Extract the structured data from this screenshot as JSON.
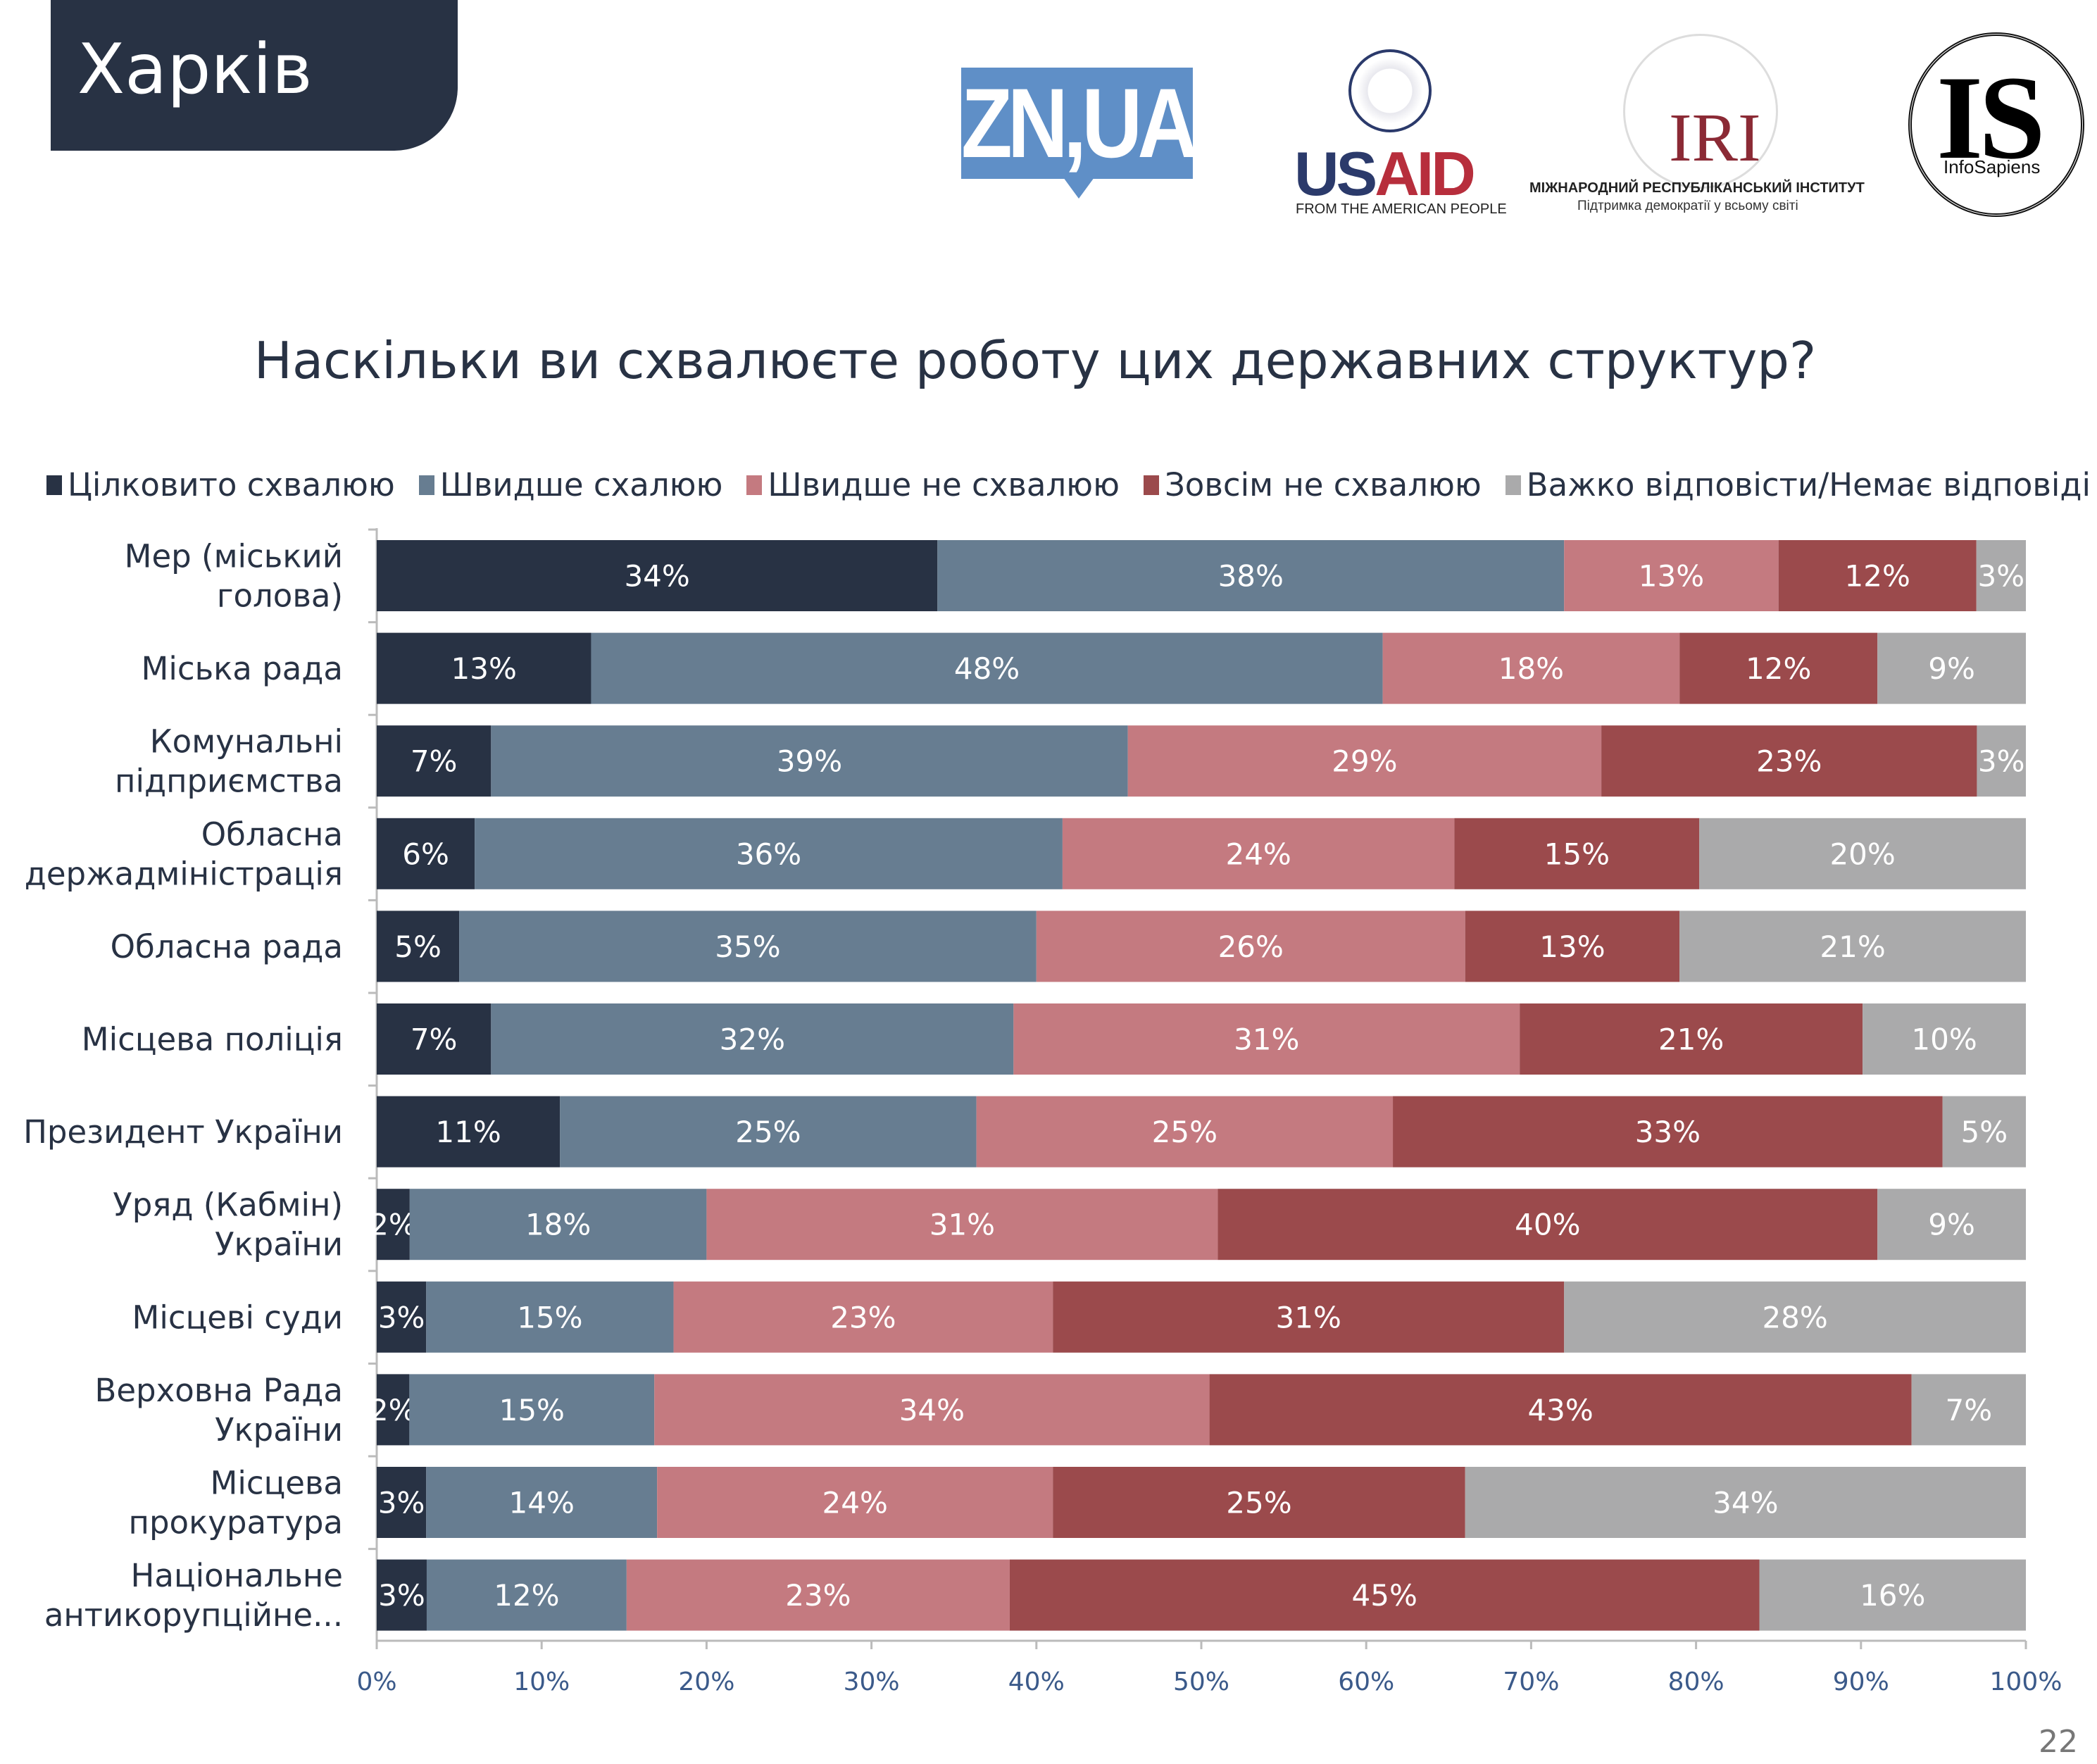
{
  "header": {
    "city": "Харків",
    "page_number": "22"
  },
  "logos": {
    "zn": "ZN,UA",
    "usaid": {
      "us": "US",
      "aid": "AID",
      "sub": "FROM THE AMERICAN PEOPLE"
    },
    "iri": {
      "word": "IRI",
      "sub1": "МІЖНАРОДНИЙ РЕСПУБЛІКАНСЬКИЙ ІНСТИТУТ",
      "sub2": "Підтримка демократії у всьому світі"
    },
    "infosapiens": {
      "word": "IS",
      "sub": "InfoSapiens"
    }
  },
  "chart_data": {
    "type": "bar",
    "orientation": "horizontal-stacked-100",
    "title": "Наскільки ви схвалюєте роботу цих державних структур?",
    "xlim": [
      0,
      100
    ],
    "x_ticks": [
      "0%",
      "10%",
      "20%",
      "30%",
      "40%",
      "50%",
      "60%",
      "70%",
      "80%",
      "90%",
      "100%"
    ],
    "legend_position": "top",
    "series": [
      {
        "name": "Цілковито схвалюю",
        "color": "#283244",
        "values": [
          34,
          13,
          7,
          6,
          5,
          7,
          11,
          2,
          3,
          2,
          3,
          3
        ]
      },
      {
        "name": "Швидше схалюю",
        "color": "#677d91",
        "values": [
          38,
          48,
          39,
          36,
          35,
          32,
          25,
          18,
          15,
          15,
          14,
          12
        ]
      },
      {
        "name": "Швидше не схвалюю",
        "color": "#c47a80",
        "values": [
          13,
          18,
          29,
          24,
          26,
          31,
          25,
          31,
          23,
          34,
          24,
          23
        ]
      },
      {
        "name": "Зовсім не схвалюю",
        "color": "#9b4a4c",
        "values": [
          12,
          12,
          23,
          15,
          13,
          21,
          33,
          40,
          31,
          43,
          25,
          45
        ]
      },
      {
        "name": "Важко відповісти/Немає відповіді",
        "color": "#aaaaab",
        "values": [
          3,
          9,
          3,
          20,
          21,
          10,
          5,
          9,
          28,
          7,
          34,
          16
        ]
      }
    ],
    "categories": [
      [
        "Мер (міський",
        "голова)"
      ],
      [
        "Міська рада"
      ],
      [
        "Комунальні",
        "підприємства"
      ],
      [
        "Обласна",
        "держадміністрація"
      ],
      [
        "Обласна рада"
      ],
      [
        "Місцева поліція"
      ],
      [
        "Президент України"
      ],
      [
        "Уряд (Кабмін)",
        "України"
      ],
      [
        "Місцеві суди"
      ],
      [
        "Верховна Рада",
        "України"
      ],
      [
        "Місцева",
        "прокуратура"
      ],
      [
        "Національне",
        "антикорупційне..."
      ]
    ]
  }
}
